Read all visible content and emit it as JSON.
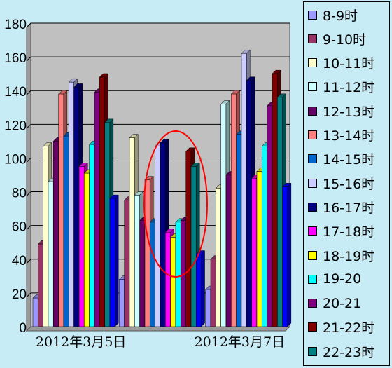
{
  "chart_data": {
    "type": "bar",
    "categories": [
      "2012年3月5日",
      "",
      "2012年3月7日"
    ],
    "ylim": [
      0,
      180
    ],
    "yticks": [
      0,
      20,
      40,
      60,
      80,
      100,
      120,
      140,
      160,
      180
    ],
    "grid": true,
    "legend_position": "right",
    "series": [
      {
        "name": "8-9时",
        "color": "#9999ff",
        "values": [
          17,
          28,
          22
        ]
      },
      {
        "name": "9-10时",
        "color": "#993366",
        "values": [
          49,
          75,
          40
        ]
      },
      {
        "name": "10-11时",
        "color": "#ffffcc",
        "values": [
          107,
          112,
          82
        ]
      },
      {
        "name": "11-12时",
        "color": "#ccffff",
        "values": [
          86,
          78,
          132
        ]
      },
      {
        "name": "12-13时",
        "color": "#660066",
        "values": [
          110,
          63,
          90
        ]
      },
      {
        "name": "13-14时",
        "color": "#ff8080",
        "values": [
          138,
          87,
          138
        ]
      },
      {
        "name": "14-15时",
        "color": "#0066cc",
        "values": [
          113,
          62,
          114
        ]
      },
      {
        "name": "15-16时",
        "color": "#ccccff",
        "values": [
          145,
          107,
          162
        ]
      },
      {
        "name": "16-17时",
        "color": "#000080",
        "values": [
          142,
          109,
          146
        ]
      },
      {
        "name": "17-18时",
        "color": "#ff00ff",
        "values": [
          95,
          56,
          88
        ]
      },
      {
        "name": "18-19时",
        "color": "#ffff00",
        "values": [
          91,
          53,
          92
        ]
      },
      {
        "name": "19-20",
        "color": "#00ffff",
        "values": [
          108,
          62,
          107
        ]
      },
      {
        "name": "20-21",
        "color": "#800080",
        "values": [
          139,
          63,
          131
        ]
      },
      {
        "name": "21-22时",
        "color": "#800000",
        "values": [
          148,
          104,
          150
        ]
      },
      {
        "name": "22-23时",
        "color": "#008080",
        "values": [
          121,
          95,
          136
        ]
      },
      {
        "name": "",
        "color": "#0000ff",
        "values": [
          76,
          43,
          83
        ]
      }
    ]
  }
}
